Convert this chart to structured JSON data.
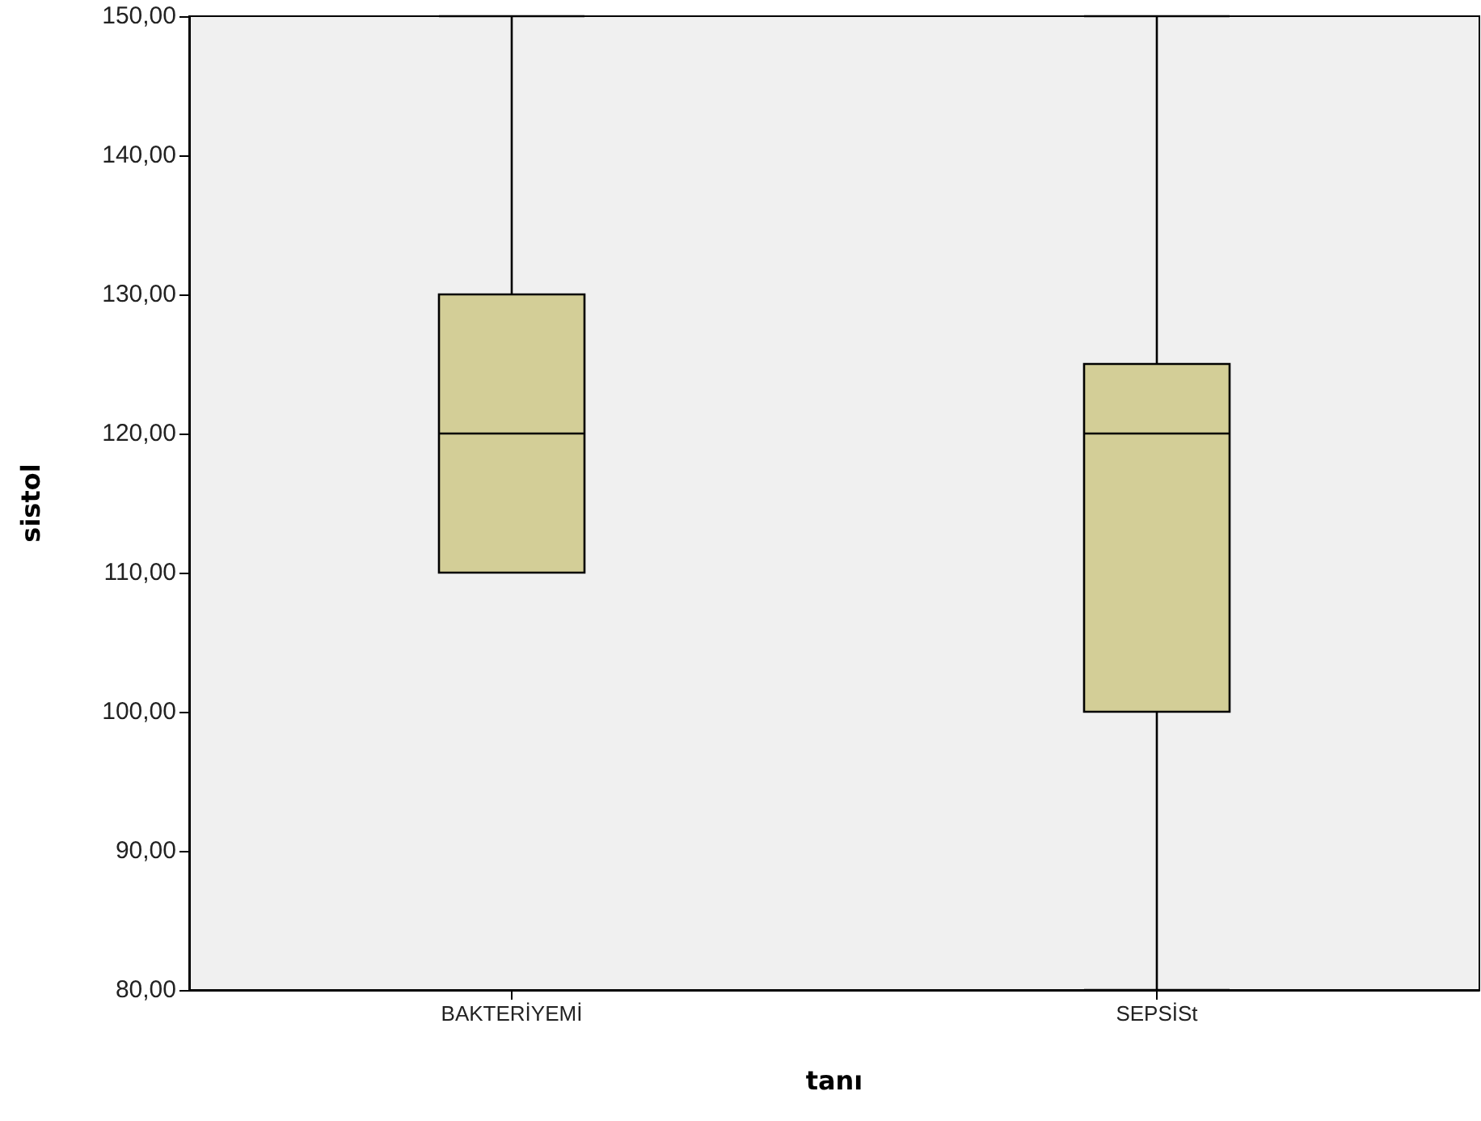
{
  "chart_data": {
    "type": "box",
    "xlabel": "tanı",
    "ylabel": "sistol",
    "categories": [
      "BAKTERİYEMİ",
      "SEPSİSt"
    ],
    "series": [
      {
        "color": "#d3ce97",
        "boxes": [
          {
            "low": 110,
            "q1": 110,
            "median": 120,
            "q3": 130,
            "high": 150
          },
          {
            "low": 80,
            "q1": 100,
            "median": 120,
            "q3": 125,
            "high": 150
          }
        ]
      }
    ],
    "ylim": [
      80,
      150
    ],
    "yticks": [
      {
        "value": 80,
        "label": "80,00"
      },
      {
        "value": 90,
        "label": "90,00"
      },
      {
        "value": 100,
        "label": "100,00"
      },
      {
        "value": 110,
        "label": "110,00"
      },
      {
        "value": 120,
        "label": "120,00"
      },
      {
        "value": 130,
        "label": "130,00"
      },
      {
        "value": 140,
        "label": "140,00"
      },
      {
        "value": 150,
        "label": "150,00"
      }
    ],
    "grid": false
  }
}
